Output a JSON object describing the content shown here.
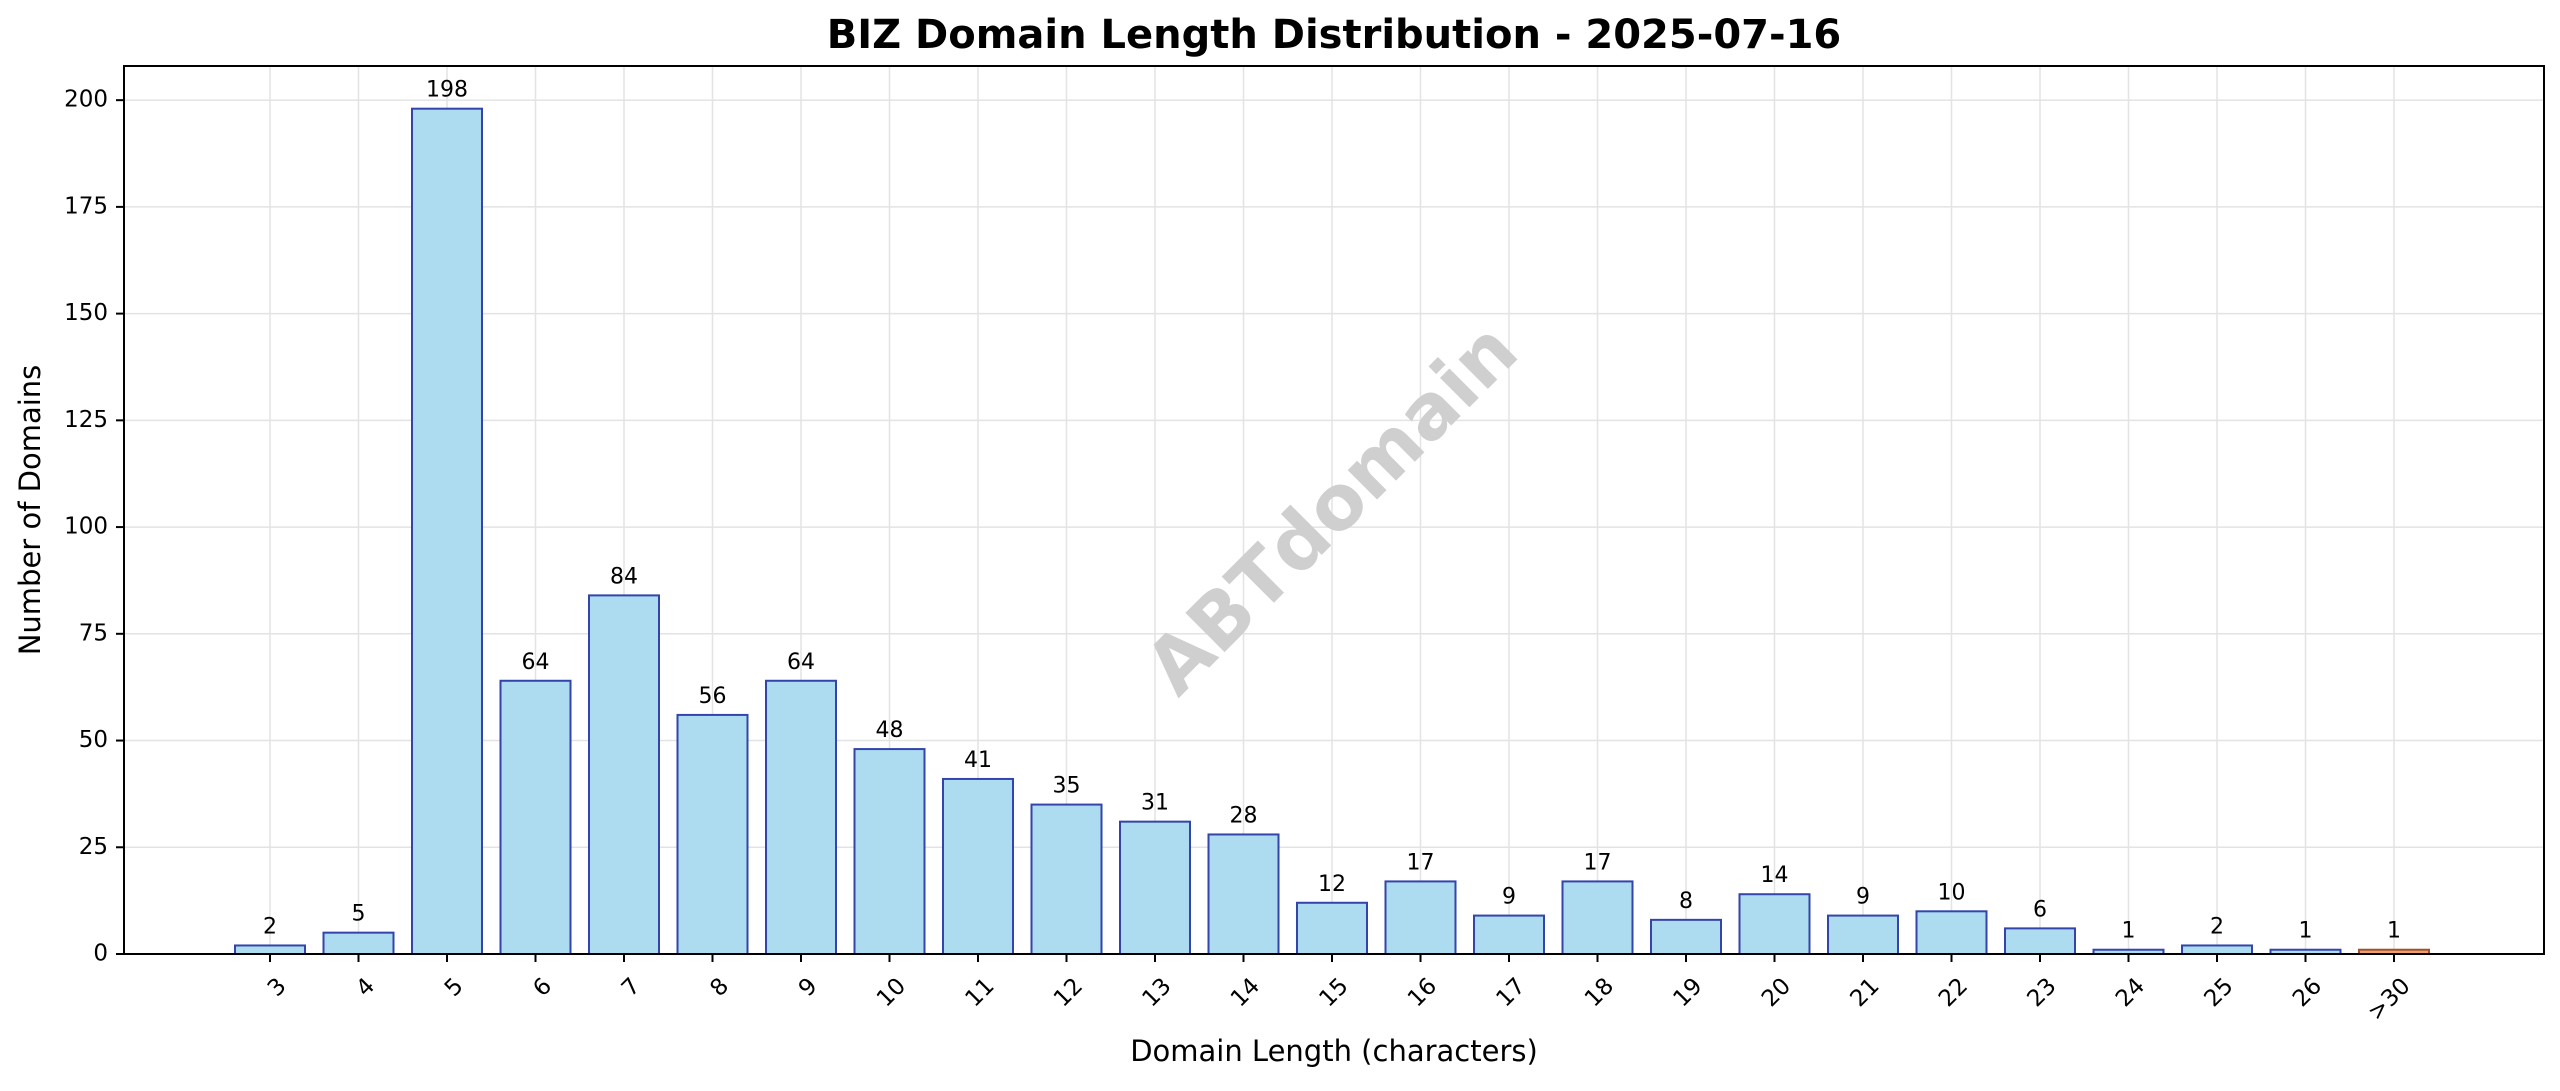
{
  "chart_data": {
    "type": "bar",
    "title": "BIZ Domain Length Distribution - 2025-07-16",
    "xlabel": "Domain Length (characters)",
    "ylabel": "Number of Domains",
    "watermark": "ABTdomain",
    "categories": [
      "3",
      "4",
      "5",
      "6",
      "7",
      "8",
      "9",
      "10",
      "11",
      "12",
      "13",
      "14",
      "15",
      "16",
      "17",
      "18",
      "19",
      "20",
      "21",
      "22",
      "23",
      "24",
      "25",
      "26",
      ">30"
    ],
    "values": [
      2,
      5,
      198,
      64,
      84,
      56,
      64,
      48,
      41,
      35,
      31,
      28,
      12,
      17,
      9,
      17,
      8,
      14,
      9,
      10,
      6,
      1,
      2,
      1,
      1
    ],
    "bar_colors": [
      "#ADDCF0",
      "#ADDCF0",
      "#ADDCF0",
      "#ADDCF0",
      "#ADDCF0",
      "#ADDCF0",
      "#ADDCF0",
      "#ADDCF0",
      "#ADDCF0",
      "#ADDCF0",
      "#ADDCF0",
      "#ADDCF0",
      "#ADDCF0",
      "#ADDCF0",
      "#ADDCF0",
      "#ADDCF0",
      "#ADDCF0",
      "#ADDCF0",
      "#ADDCF0",
      "#ADDCF0",
      "#ADDCF0",
      "#ADDCF0",
      "#ADDCF0",
      "#ADDCF0",
      "#F0A070"
    ],
    "bar_edge_colors": [
      "#3344AA",
      "#3344AA",
      "#3344AA",
      "#3344AA",
      "#3344AA",
      "#3344AA",
      "#3344AA",
      "#3344AA",
      "#3344AA",
      "#3344AA",
      "#3344AA",
      "#3344AA",
      "#3344AA",
      "#3344AA",
      "#3344AA",
      "#3344AA",
      "#3344AA",
      "#3344AA",
      "#3344AA",
      "#3344AA",
      "#3344AA",
      "#3344AA",
      "#3344AA",
      "#3344AA",
      "#A0522D"
    ],
    "ylim": [
      0,
      208
    ],
    "yticks": [
      0,
      25,
      50,
      75,
      100,
      125,
      150,
      175,
      200
    ],
    "grid": true,
    "legend": "none"
  }
}
